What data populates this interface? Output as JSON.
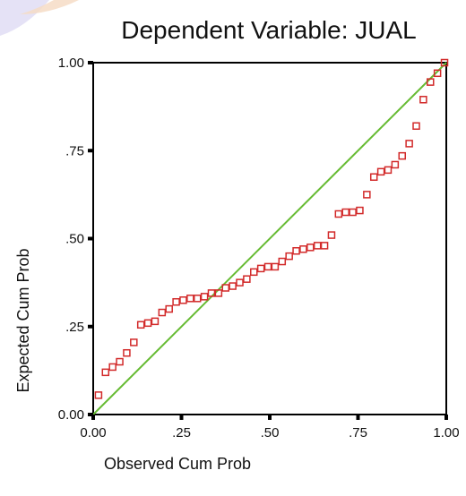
{
  "chart_data": {
    "type": "scatter",
    "title": "Dependent Variable: JUAL",
    "xlabel": "Observed Cum Prob",
    "ylabel": "Expected Cum Prob",
    "xlim": [
      0,
      1
    ],
    "ylim": [
      0,
      1
    ],
    "xticks": [
      "0.00",
      ".25",
      ".50",
      ".75",
      "1.00"
    ],
    "yticks": [
      "0.00",
      ".25",
      ".50",
      ".75",
      "1.00"
    ],
    "reference_line": {
      "from": [
        0,
        0
      ],
      "to": [
        1,
        1
      ],
      "color": "#66bb33"
    },
    "marker_color": "#d22a2a",
    "grid": false,
    "series": [
      {
        "points": [
          [
            0.015,
            0.055
          ],
          [
            0.035,
            0.12
          ],
          [
            0.055,
            0.135
          ],
          [
            0.075,
            0.15
          ],
          [
            0.095,
            0.175
          ],
          [
            0.115,
            0.205
          ],
          [
            0.135,
            0.255
          ],
          [
            0.155,
            0.26
          ],
          [
            0.175,
            0.265
          ],
          [
            0.195,
            0.29
          ],
          [
            0.215,
            0.3
          ],
          [
            0.235,
            0.32
          ],
          [
            0.255,
            0.325
          ],
          [
            0.275,
            0.33
          ],
          [
            0.295,
            0.33
          ],
          [
            0.315,
            0.335
          ],
          [
            0.335,
            0.345
          ],
          [
            0.355,
            0.345
          ],
          [
            0.375,
            0.36
          ],
          [
            0.395,
            0.365
          ],
          [
            0.415,
            0.375
          ],
          [
            0.435,
            0.385
          ],
          [
            0.455,
            0.405
          ],
          [
            0.475,
            0.415
          ],
          [
            0.495,
            0.42
          ],
          [
            0.515,
            0.42
          ],
          [
            0.535,
            0.435
          ],
          [
            0.555,
            0.45
          ],
          [
            0.575,
            0.465
          ],
          [
            0.595,
            0.47
          ],
          [
            0.615,
            0.475
          ],
          [
            0.635,
            0.48
          ],
          [
            0.655,
            0.48
          ],
          [
            0.675,
            0.51
          ],
          [
            0.695,
            0.57
          ],
          [
            0.715,
            0.575
          ],
          [
            0.735,
            0.575
          ],
          [
            0.755,
            0.58
          ],
          [
            0.775,
            0.625
          ],
          [
            0.795,
            0.675
          ],
          [
            0.815,
            0.69
          ],
          [
            0.835,
            0.695
          ],
          [
            0.855,
            0.71
          ],
          [
            0.875,
            0.735
          ],
          [
            0.895,
            0.77
          ],
          [
            0.915,
            0.82
          ],
          [
            0.935,
            0.895
          ],
          [
            0.955,
            0.945
          ],
          [
            0.975,
            0.97
          ],
          [
            0.995,
            1.0
          ]
        ]
      }
    ]
  }
}
